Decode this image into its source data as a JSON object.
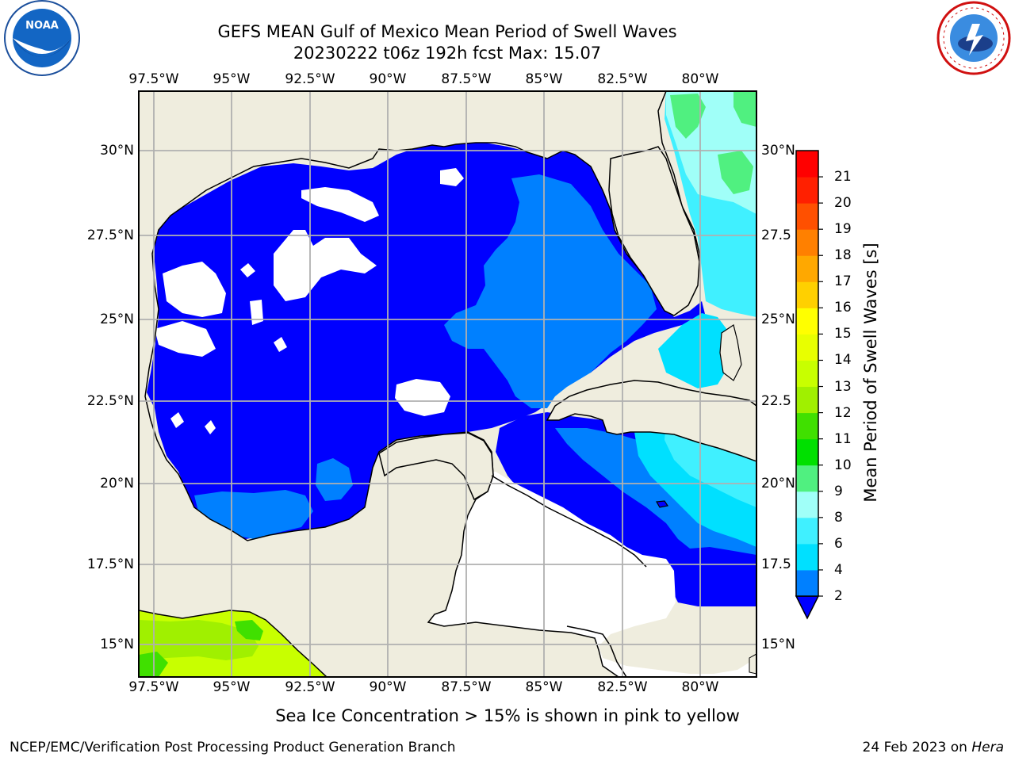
{
  "header": {
    "title_line1": "GEFS MEAN Gulf of Mexico Mean Period of Swell Waves",
    "title_line2": "20230222 t06z 192h fcst   Max: 15.07",
    "left_logo": "noaa-logo",
    "right_logo": "national-weather-service-logo"
  },
  "map": {
    "lon_labels": [
      "97.5°W",
      "95°W",
      "92.5°W",
      "90°W",
      "87.5°W",
      "85°W",
      "82.5°W",
      "80°W"
    ],
    "lat_labels_left": [
      "30°N",
      "27.5°N",
      "25°N",
      "22.5°N",
      "20°N",
      "17.5°N",
      "15°N"
    ],
    "lat_labels_right": [
      "30°N",
      "27.5",
      "25°N",
      "22.5",
      "20°N",
      "17.5",
      "15°N"
    ],
    "land_color": "#efedde",
    "no_data_color": "#ffffff",
    "grid_color": "#b0b0b0"
  },
  "colorbar": {
    "label": "Mean Period of Swell Waves [s]",
    "ticks": [
      "2",
      "4",
      "6",
      "8",
      "9",
      "10",
      "11",
      "12",
      "13",
      "14",
      "15",
      "16",
      "17",
      "18",
      "19",
      "20",
      "21"
    ],
    "colors": [
      "#0000ff",
      "#0080ff",
      "#00e0ff",
      "#40f0ff",
      "#a0fff8",
      "#50f080",
      "#00e000",
      "#40e000",
      "#a0f000",
      "#c8ff00",
      "#e8ff00",
      "#ffff00",
      "#ffd000",
      "#ffa800",
      "#ff8000",
      "#ff5000",
      "#ff2000",
      "#ff0000"
    ]
  },
  "footer": {
    "note": "Sea Ice Concentration > 15% is shown in pink to yellow",
    "credit": "NCEP/EMC/Verification Post Processing Product Generation Branch",
    "date": "24 Feb 2023 on",
    "host": "Hera"
  }
}
